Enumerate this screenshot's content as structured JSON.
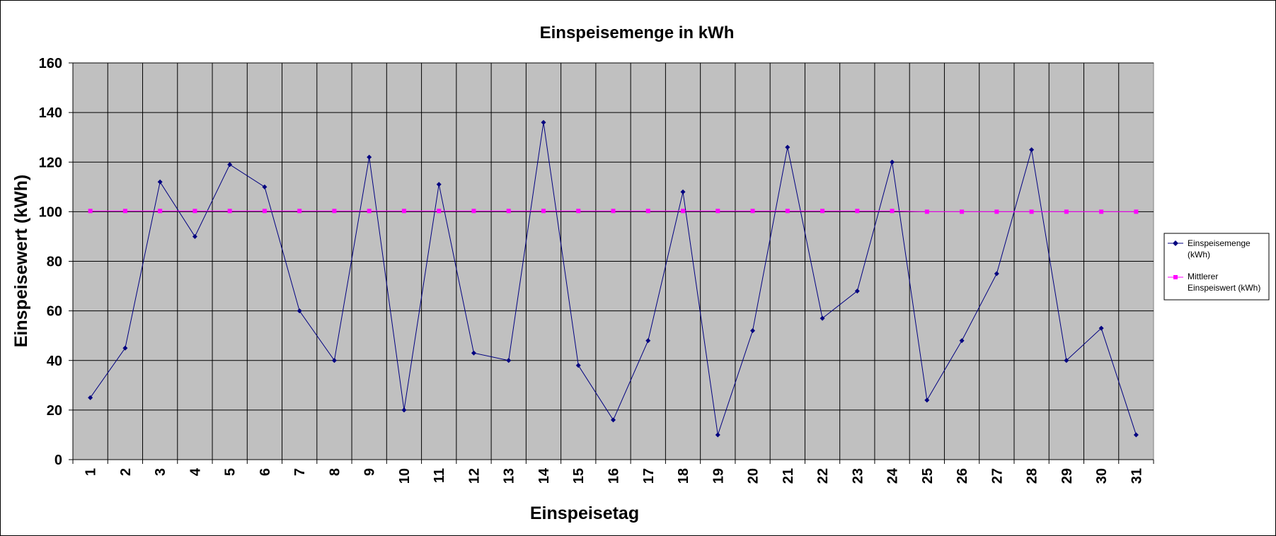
{
  "chart_data": {
    "type": "line",
    "title": "Einspeisemenge in kWh",
    "xlabel": "Einspeisetag",
    "ylabel": "Einspeisewert  (kWh)",
    "ylim": [
      0,
      160
    ],
    "yticks": [
      "0",
      "20",
      "40",
      "60",
      "80",
      "100",
      "120",
      "140",
      "160"
    ],
    "categories": [
      "1",
      "2",
      "3",
      "4",
      "5",
      "6",
      "7",
      "8",
      "9",
      "10",
      "11",
      "12",
      "13",
      "14",
      "15",
      "16",
      "17",
      "18",
      "19",
      "20",
      "21",
      "22",
      "23",
      "24",
      "25",
      "26",
      "27",
      "28",
      "29",
      "30",
      "31"
    ],
    "grid": true,
    "legend_position": "right",
    "plot_background": "#c0c0c0",
    "series": [
      {
        "name": "Einspeisemenge (kWh)",
        "color": "#000080",
        "marker": "diamond",
        "values": [
          25,
          45,
          112,
          90,
          119,
          110,
          60,
          40,
          122,
          20,
          111,
          43,
          40,
          136,
          38,
          16,
          48,
          108,
          10,
          52,
          126,
          57,
          68,
          120,
          24,
          48,
          75,
          125,
          40,
          53,
          10
        ]
      },
      {
        "name": "Mittlerer Einspeiswert (kWh)",
        "color": "#ff00ff",
        "marker": "square",
        "values": [
          100.3,
          100.3,
          100.3,
          100.3,
          100.3,
          100.3,
          100.3,
          100.3,
          100.3,
          100.3,
          100.3,
          100.3,
          100.3,
          100.3,
          100.3,
          100.3,
          100.3,
          100.3,
          100.3,
          100.3,
          100.3,
          100.3,
          100.3,
          100.3,
          100,
          100,
          100,
          100,
          100,
          100,
          100
        ]
      }
    ]
  },
  "legend": {
    "items": [
      {
        "line1": "Einspeisemenge",
        "line2": "(kWh)"
      },
      {
        "line1": "Mittlerer",
        "line2": "Einspeiswert (kWh)"
      }
    ]
  }
}
